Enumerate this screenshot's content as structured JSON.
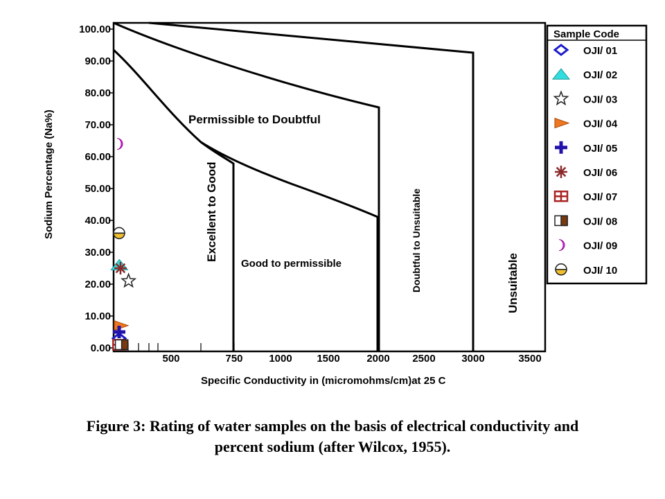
{
  "chart_data": {
    "type": "scatter",
    "xlabel": "Specific Conductivity in (micromohms/cm)",
    "xlabel_suffix": "at 25 C",
    "ylabel": "Sodium Percentage (Na%)",
    "ylim": [
      0,
      100
    ],
    "xlim": [
      0,
      3500
    ],
    "x_ticks": [
      "500",
      "750",
      "1000",
      "1500",
      "2000",
      "2500",
      "3000",
      "3500"
    ],
    "y_ticks": [
      "0.00",
      "10.00",
      "20.00",
      "30.00",
      "40.00",
      "50.00",
      "60.00",
      "70.00",
      "80.00",
      "90.00",
      "100.00"
    ],
    "regions": [
      "Excellent to Good",
      "Permissible to Doubtful",
      "Good to permissible",
      "Doubtful to Unsuitable",
      "Unsuitable"
    ],
    "legend_title": "Sample Code",
    "series": [
      {
        "name": "OJI/ 01",
        "marker": "diamond",
        "color": "#1a1acc",
        "x": 40,
        "y": 3
      },
      {
        "name": "OJI/ 02",
        "marker": "triangle",
        "color": "#33dddd",
        "x": 50,
        "y": 26
      },
      {
        "name": "OJI/ 03",
        "marker": "star",
        "color": "#ffffff",
        "x": 130,
        "y": 21
      },
      {
        "name": "OJI/ 04",
        "marker": "right-triangle",
        "color": "#ee7722",
        "x": 60,
        "y": 7
      },
      {
        "name": "OJI/ 05",
        "marker": "plus",
        "color": "#2211aa",
        "x": 35,
        "y": 5
      },
      {
        "name": "OJI/ 06",
        "marker": "asterisk",
        "color": "#8a2a2a",
        "x": 60,
        "y": 25
      },
      {
        "name": "OJI/ 07",
        "marker": "grid-square",
        "color": "#aa2222",
        "x": 50,
        "y": 1
      },
      {
        "name": "OJI/ 08",
        "marker": "half-square",
        "color": "#7a3a10",
        "x": 70,
        "y": 1
      },
      {
        "name": "OJI/ 09",
        "marker": "crescent",
        "color": "#ee22ee",
        "x": 30,
        "y": 64
      },
      {
        "name": "OJI/ 10",
        "marker": "half-circle",
        "color": "#f0c030",
        "x": 35,
        "y": 36
      }
    ]
  },
  "caption": {
    "line1": "Figure 3: Rating of water samples on the basis of electrical conductivity and",
    "line2": "percent sodium (after Wilcox, 1955)."
  }
}
